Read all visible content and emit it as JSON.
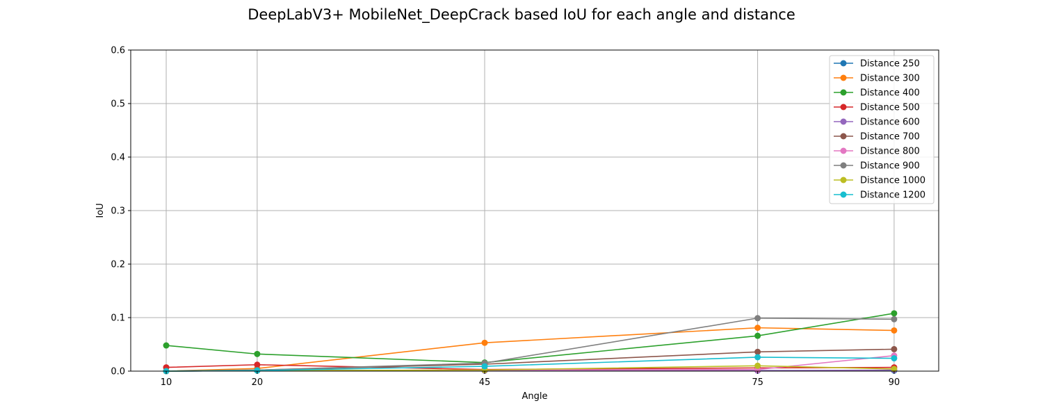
{
  "chart_data": {
    "type": "line",
    "title": "DeepLabV3+ MobileNet_DeepCrack based IoU for each angle and distance",
    "xlabel": "Angle",
    "ylabel": "IoU",
    "x": [
      10,
      20,
      45,
      75,
      90
    ],
    "x_ticks": [
      "10",
      "20",
      "45",
      "75",
      "90"
    ],
    "xlim": [
      6.1,
      94.9
    ],
    "ylim": [
      0,
      0.6
    ],
    "y_ticks": [
      "0.0",
      "0.1",
      "0.2",
      "0.3",
      "0.4",
      "0.5",
      "0.6"
    ],
    "grid": true,
    "legend_position": "upper right",
    "series": [
      {
        "name": "Distance 250",
        "color": "#1f77b4",
        "values": [
          0.0,
          0.001,
          0.001,
          0.001,
          0.001
        ]
      },
      {
        "name": "Distance 300",
        "color": "#ff7f0e",
        "values": [
          0.0,
          0.005,
          0.053,
          0.081,
          0.076
        ]
      },
      {
        "name": "Distance 400",
        "color": "#2ca02c",
        "values": [
          0.048,
          0.032,
          0.016,
          0.066,
          0.108
        ]
      },
      {
        "name": "Distance 500",
        "color": "#d62728",
        "values": [
          0.007,
          0.012,
          0.003,
          0.006,
          0.007
        ]
      },
      {
        "name": "Distance 600",
        "color": "#9467bd",
        "values": [
          0.0,
          0.001,
          0.001,
          0.001,
          0.002
        ]
      },
      {
        "name": "Distance 700",
        "color": "#8c564b",
        "values": [
          0.0,
          0.002,
          0.013,
          0.036,
          0.041
        ]
      },
      {
        "name": "Distance 800",
        "color": "#e377c2",
        "values": [
          0.0,
          0.001,
          0.002,
          0.003,
          0.029
        ]
      },
      {
        "name": "Distance 900",
        "color": "#7f7f7f",
        "values": [
          0.0,
          0.002,
          0.015,
          0.099,
          0.097
        ]
      },
      {
        "name": "Distance 1000",
        "color": "#bcbd22",
        "values": [
          0.0,
          0.001,
          0.002,
          0.01,
          0.004
        ]
      },
      {
        "name": "Distance 1200",
        "color": "#17becf",
        "values": [
          0.0,
          0.001,
          0.009,
          0.026,
          0.024
        ]
      }
    ]
  }
}
